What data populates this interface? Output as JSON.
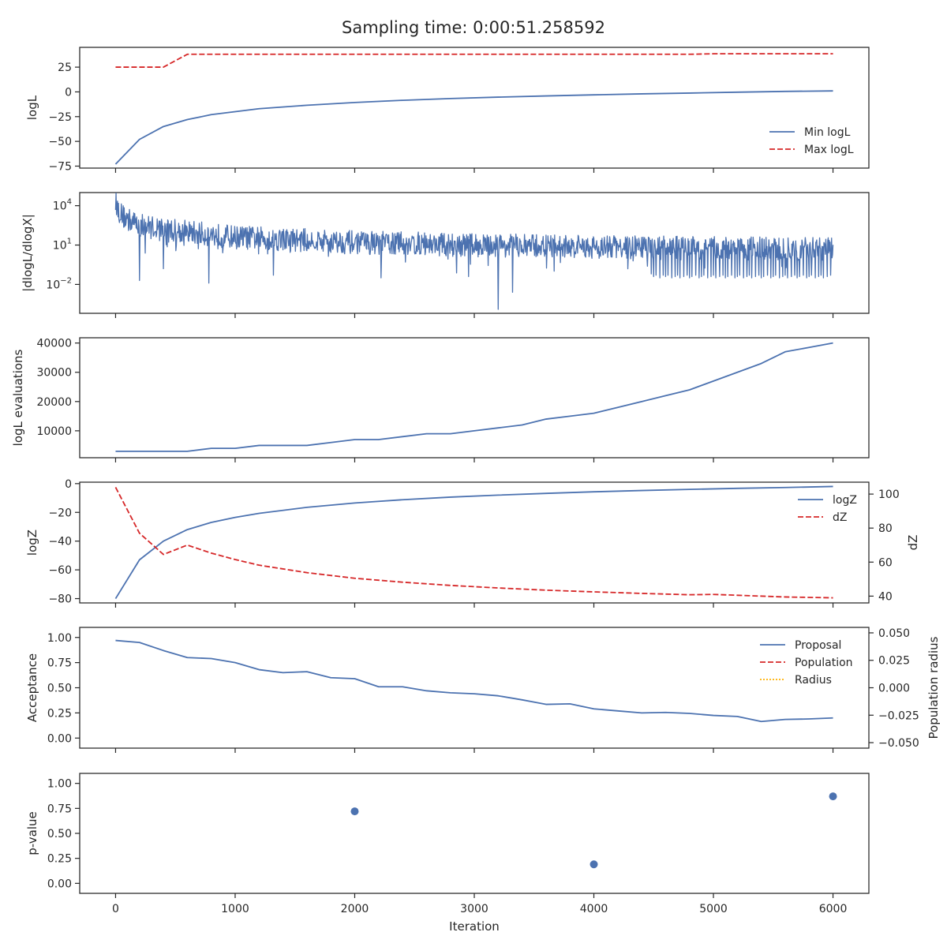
{
  "title": "Sampling time: 0:00:51.258592",
  "colors": {
    "blue": "#4c72b0",
    "red": "#d62728",
    "orange": "#ffb000",
    "frame": "#262626"
  },
  "chart_data": [
    {
      "type": "line",
      "ylabel": "logL",
      "xlim": [
        -300,
        6300
      ],
      "ylim": [
        -77,
        45
      ],
      "yticks": [
        -75,
        -50,
        -25,
        0,
        25
      ],
      "legend": "lower-right",
      "series": [
        {
          "name": "Min logL",
          "color": "blue",
          "dash": "solid",
          "x": [
            0,
            200,
            400,
            600,
            800,
            1000,
            1200,
            1600,
            2000,
            2400,
            2800,
            3200,
            3600,
            4000,
            4400,
            4800,
            5200,
            5600,
            6000
          ],
          "y": [
            -73,
            -48,
            -35,
            -28,
            -23,
            -20,
            -17,
            -13.5,
            -10.7,
            -8.5,
            -6.7,
            -5.3,
            -4.1,
            -3.0,
            -2.0,
            -1.2,
            -0.3,
            0.5,
            1
          ]
        },
        {
          "name": "Max logL",
          "color": "red",
          "dash": "dashed",
          "x": [
            0,
            400,
            600,
            4800,
            5000,
            6000
          ],
          "y": [
            25,
            25,
            38,
            38,
            38.5,
            38.5
          ]
        }
      ]
    },
    {
      "type": "line",
      "ylabel": "|dlogL/dlogX|",
      "yscale": "log",
      "ylim_log10": [
        -4.2,
        5.0
      ],
      "yticks": [
        "10^4",
        "10^1",
        "10^-2"
      ],
      "series": [
        {
          "name": "",
          "color": "blue",
          "noisy": true,
          "trend_x": [
            0,
            20,
            60,
            200,
            600,
            1000,
            2000,
            3000,
            4000,
            5000,
            6000
          ],
          "trend_log10": [
            4.4,
            3.7,
            3.2,
            2.5,
            2.0,
            1.6,
            1.2,
            1.0,
            0.85,
            0.75,
            0.7
          ],
          "spikes": [
            [
              200,
              -1.7
            ],
            [
              400,
              -0.8
            ],
            [
              780,
              -1.9
            ],
            [
              1320,
              -1.3
            ],
            [
              2220,
              -1.5
            ],
            [
              2950,
              -1.4
            ],
            [
              3200,
              -3.9
            ],
            [
              3320,
              -2.6
            ],
            [
              4480,
              -1.2
            ],
            [
              4500,
              -1.4
            ],
            [
              4520,
              -1.3
            ],
            [
              4550,
              -1.5
            ],
            [
              4580,
              -1.3
            ],
            [
              4600,
              -1.4
            ],
            [
              4620,
              -1.3
            ],
            [
              4650,
              -1.5
            ],
            [
              4680,
              -1.4
            ],
            [
              4700,
              -1.3
            ],
            [
              4720,
              -1.5
            ],
            [
              4750,
              -1.4
            ],
            [
              4780,
              -1.3
            ],
            [
              4800,
              -1.5
            ],
            [
              4820,
              -1.4
            ],
            [
              4850,
              -1.3
            ],
            [
              4880,
              -1.5
            ],
            [
              4900,
              -1.4
            ],
            [
              4920,
              -1.3
            ],
            [
              4950,
              -1.5
            ],
            [
              4980,
              -1.4
            ],
            [
              5000,
              -1.3
            ],
            [
              5020,
              -1.5
            ],
            [
              5050,
              -1.4
            ],
            [
              5080,
              -1.3
            ],
            [
              5100,
              -1.5
            ],
            [
              5120,
              -1.4
            ],
            [
              5150,
              -1.3
            ],
            [
              5180,
              -1.5
            ],
            [
              5200,
              -1.4
            ],
            [
              5220,
              -1.3
            ],
            [
              5250,
              -1.5
            ],
            [
              5280,
              -1.4
            ],
            [
              5300,
              -1.3
            ],
            [
              5320,
              -1.5
            ],
            [
              5350,
              -1.4
            ],
            [
              5380,
              -1.3
            ],
            [
              5400,
              -1.5
            ],
            [
              5420,
              -1.4
            ],
            [
              5450,
              -1.3
            ],
            [
              5480,
              -1.5
            ],
            [
              5500,
              -1.4
            ],
            [
              5520,
              -1.3
            ],
            [
              5550,
              -1.5
            ],
            [
              5580,
              -1.4
            ],
            [
              5600,
              -1.3
            ],
            [
              5620,
              -1.5
            ],
            [
              5650,
              -1.4
            ],
            [
              5680,
              -1.3
            ],
            [
              5700,
              -1.5
            ],
            [
              5720,
              -1.4
            ],
            [
              5750,
              -1.3
            ],
            [
              5780,
              -1.5
            ],
            [
              5800,
              -1.4
            ],
            [
              5820,
              -1.3
            ],
            [
              5850,
              -1.5
            ],
            [
              5880,
              -1.4
            ],
            [
              5900,
              -1.3
            ],
            [
              5920,
              -1.5
            ],
            [
              5950,
              -1.4
            ],
            [
              5980,
              -1.3
            ]
          ]
        }
      ]
    },
    {
      "type": "line",
      "ylabel": "logL evaluations",
      "ylim": [
        800,
        41800
      ],
      "yticks": [
        10000,
        20000,
        30000,
        40000
      ],
      "series": [
        {
          "name": "",
          "color": "blue",
          "dash": "solid",
          "x": [
            0,
            200,
            400,
            600,
            800,
            1000,
            1200,
            1400,
            1600,
            1800,
            2000,
            2200,
            2400,
            2600,
            2800,
            3000,
            3200,
            3400,
            3600,
            3800,
            4000,
            4200,
            4400,
            4600,
            4800,
            5000,
            5200,
            5400,
            5600,
            5800,
            6000
          ],
          "y": [
            3000,
            3000,
            3000,
            3000,
            4000,
            4000,
            5000,
            5000,
            5000,
            6000,
            7000,
            7000,
            8000,
            9000,
            9000,
            10000,
            11000,
            12000,
            14000,
            15000,
            16000,
            18000,
            20000,
            22000,
            24000,
            27000,
            30000,
            33000,
            37000,
            38500,
            40000
          ]
        }
      ]
    },
    {
      "type": "line",
      "ylabel": "logZ",
      "ylabel_right": "dZ",
      "ylim": [
        -83,
        1
      ],
      "yticks": [
        -80,
        -60,
        -40,
        -20,
        0
      ],
      "ylim_right": [
        36,
        107
      ],
      "yticks_right": [
        40,
        60,
        80,
        100
      ],
      "legend": "upper-right",
      "series": [
        {
          "name": "logZ",
          "color": "blue",
          "dash": "solid",
          "axis": "left",
          "x": [
            0,
            200,
            400,
            600,
            800,
            1000,
            1200,
            1600,
            2000,
            2400,
            2800,
            3200,
            3600,
            4000,
            4400,
            4800,
            5200,
            5600,
            6000
          ],
          "y": [
            -80,
            -53,
            -40,
            -32,
            -27,
            -23.5,
            -20.7,
            -16.5,
            -13.5,
            -11.2,
            -9.4,
            -8,
            -6.8,
            -5.7,
            -4.8,
            -4,
            -3.3,
            -2.7,
            -2
          ]
        },
        {
          "name": "dZ",
          "color": "red",
          "dash": "dashed",
          "axis": "right",
          "x": [
            0,
            200,
            400,
            600,
            800,
            1000,
            1200,
            1600,
            2000,
            2400,
            2800,
            3200,
            3600,
            4000,
            4400,
            4800,
            5000,
            5200,
            5600,
            6000
          ],
          "y": [
            104,
            77,
            64.5,
            70,
            65.3,
            61.5,
            58.2,
            53.8,
            50.5,
            48.2,
            46.3,
            44.8,
            43.5,
            42.5,
            41.6,
            40.8,
            41,
            40.5,
            39.5,
            39
          ]
        }
      ]
    },
    {
      "type": "line",
      "ylabel": "Acceptance",
      "ylabel_right": "Population radius",
      "ylim": [
        -0.1,
        1.1
      ],
      "yticks": [
        0.0,
        0.25,
        0.5,
        0.75,
        1.0
      ],
      "ylim_right": [
        -0.055,
        0.055
      ],
      "yticks_right": [
        -0.05,
        -0.025,
        0.0,
        0.025,
        0.05
      ],
      "legend": "upper-right",
      "series": [
        {
          "name": "Proposal",
          "color": "blue",
          "dash": "solid",
          "x": [
            0,
            200,
            400,
            600,
            800,
            1000,
            1200,
            1400,
            1600,
            1800,
            2000,
            2200,
            2400,
            2600,
            2800,
            3000,
            3200,
            3400,
            3600,
            3800,
            4000,
            4200,
            4400,
            4600,
            4800,
            5000,
            5200,
            5400,
            5600,
            5800,
            6000
          ],
          "y": [
            0.97,
            0.95,
            0.87,
            0.8,
            0.79,
            0.75,
            0.68,
            0.65,
            0.66,
            0.6,
            0.59,
            0.51,
            0.51,
            0.47,
            0.45,
            0.44,
            0.42,
            0.38,
            0.335,
            0.34,
            0.29,
            0.27,
            0.25,
            0.255,
            0.245,
            0.225,
            0.215,
            0.165,
            0.185,
            0.19,
            0.2
          ]
        },
        {
          "name": "Population",
          "color": "red",
          "dash": "dashed",
          "x": [],
          "y": []
        },
        {
          "name": "Radius",
          "color": "orange",
          "dash": "dotted",
          "x": [],
          "y": []
        }
      ]
    },
    {
      "type": "scatter",
      "ylabel": "p-value",
      "xlabel": "Iteration",
      "ylim": [
        -0.1,
        1.1
      ],
      "yticks": [
        0.0,
        0.25,
        0.5,
        0.75,
        1.0
      ],
      "xticks": [
        0,
        1000,
        2000,
        3000,
        4000,
        5000,
        6000
      ],
      "series": [
        {
          "name": "",
          "color": "blue",
          "x": [
            2000,
            4000,
            6000
          ],
          "y": [
            0.72,
            0.19,
            0.87
          ]
        }
      ]
    }
  ]
}
